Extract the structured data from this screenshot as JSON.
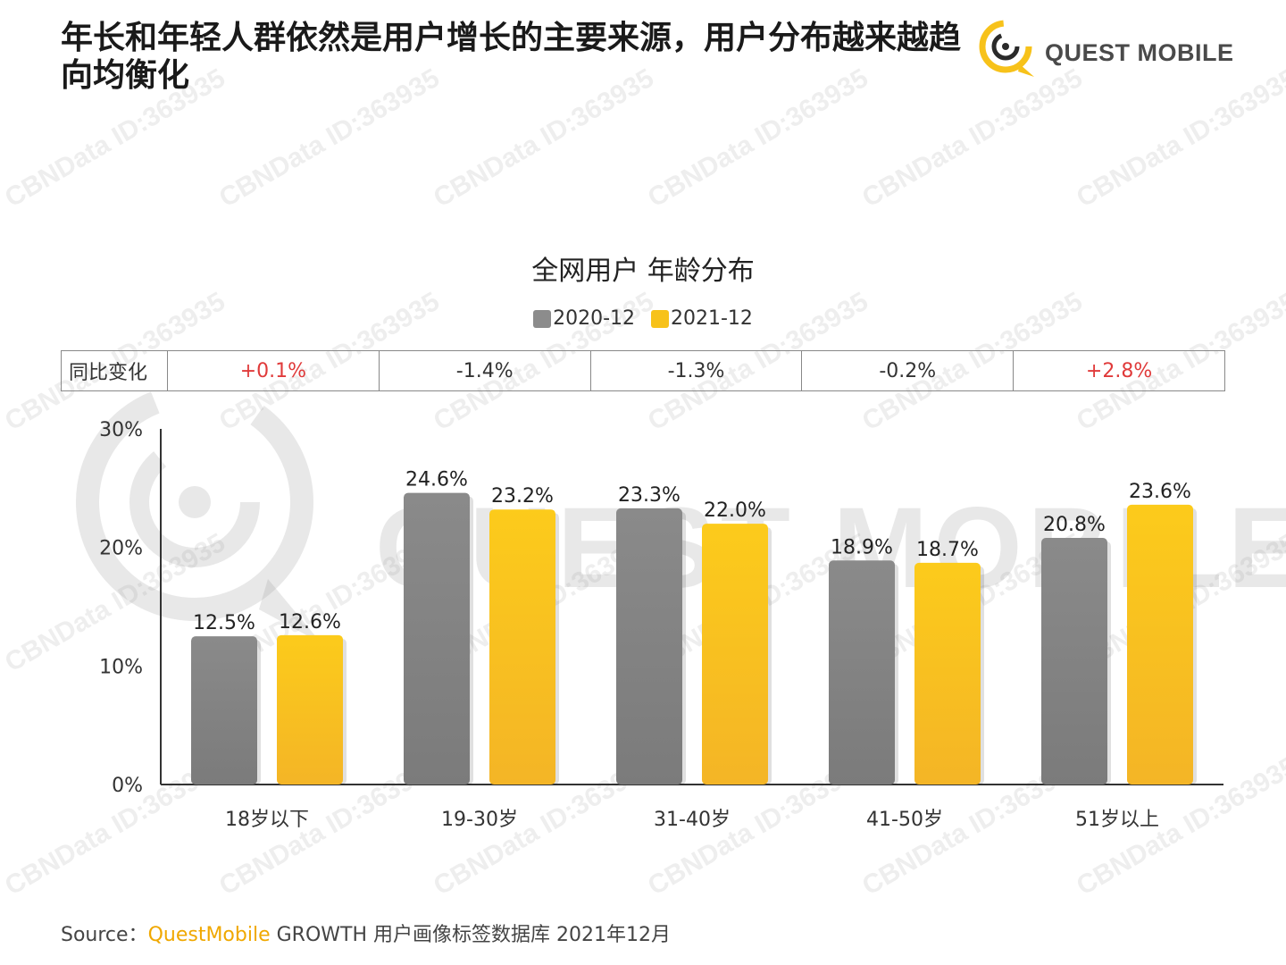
{
  "header": {
    "title": "年长和年轻人群依然是用户增长的主要来源，用户分布越来越趋向均衡化",
    "logo_text": "QUEST MOBILE"
  },
  "watermark": {
    "text": "CBNData ID:363935",
    "logo_text": "QUEST MOBILE"
  },
  "yoy": {
    "label": "同比变化",
    "values": [
      "+0.1%",
      "-1.4%",
      "-1.3%",
      "-0.2%",
      "+2.8%"
    ]
  },
  "source": {
    "prefix": "Source：",
    "brand": "QuestMobile",
    "rest": " GROWTH 用户画像标签数据库 2021年12月"
  },
  "colors": {
    "series_2020": "#8c8c8c",
    "series_2021": "#f7c21a",
    "positive": "#e03a3a",
    "brand": "#f0a800"
  },
  "chart_data": {
    "type": "bar",
    "title": "全网用户 年龄分布",
    "categories": [
      "18岁以下",
      "19-30岁",
      "31-40岁",
      "41-50岁",
      "51岁以上"
    ],
    "series": [
      {
        "name": "2020-12",
        "values": [
          12.5,
          24.6,
          23.3,
          18.9,
          20.8
        ],
        "labels": [
          "12.5%",
          "24.6%",
          "23.3%",
          "18.9%",
          "20.8%"
        ]
      },
      {
        "name": "2021-12",
        "values": [
          12.6,
          23.2,
          22.0,
          18.7,
          23.6
        ],
        "labels": [
          "12.6%",
          "23.2%",
          "22.0%",
          "18.7%",
          "23.6%"
        ]
      }
    ],
    "y_ticks": [
      "0%",
      "10%",
      "20%",
      "30%"
    ],
    "ylim": [
      0,
      30
    ],
    "grid": false,
    "legend_position": "top-center"
  }
}
